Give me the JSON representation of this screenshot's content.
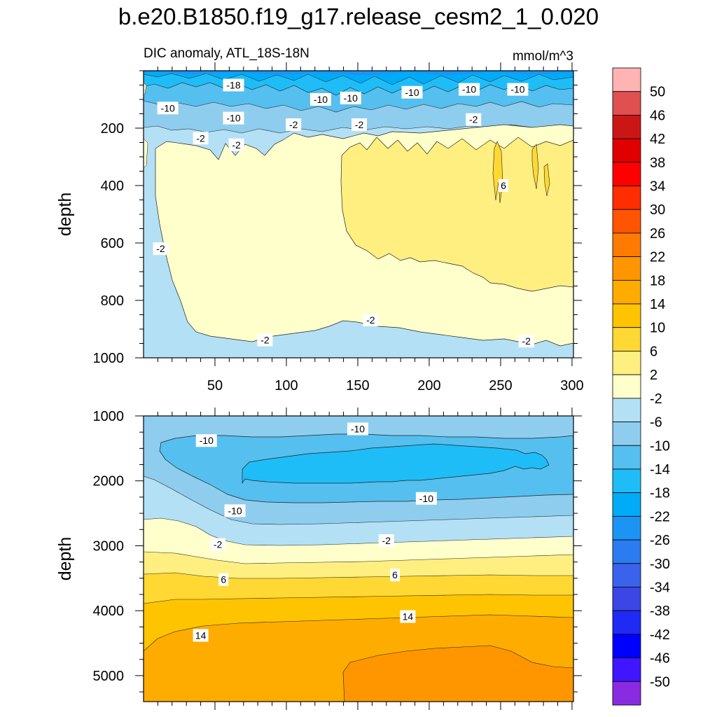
{
  "chart_data": {
    "type": "contour",
    "title": "b.e20.B1850.f19_g17.release_cesm2_1_0.020",
    "subtitle": "DIC anomaly, ATL_18S-18N",
    "units": "mmol/m^3",
    "x_ticks": [
      50,
      100,
      150,
      200,
      250,
      300
    ],
    "xlim": [
      0,
      301
    ],
    "panels": [
      {
        "name": "upper",
        "ylabel": "depth",
        "ylim": [
          0,
          1000
        ],
        "y_ticks": [
          200,
          400,
          600,
          800,
          1000
        ],
        "contour_labels": [
          {
            "text": "-18",
            "x": 63,
            "y": 50
          },
          {
            "text": "-10",
            "x": 17,
            "y": 130
          },
          {
            "text": "-10",
            "x": 63,
            "y": 165
          },
          {
            "text": "-10",
            "x": 124,
            "y": 100
          },
          {
            "text": "-10",
            "x": 145,
            "y": 95
          },
          {
            "text": "-10",
            "x": 188,
            "y": 75
          },
          {
            "text": "-10",
            "x": 228,
            "y": 65
          },
          {
            "text": "-10",
            "x": 262,
            "y": 65
          },
          {
            "text": "-2",
            "x": 105,
            "y": 188
          },
          {
            "text": "-2",
            "x": 151,
            "y": 188
          },
          {
            "text": "-2",
            "x": 231,
            "y": 170
          },
          {
            "text": "-2",
            "x": 40,
            "y": 235
          },
          {
            "text": "-2",
            "x": 65,
            "y": 258
          },
          {
            "text": "-2",
            "x": 12,
            "y": 620
          },
          {
            "text": "-2",
            "x": 85,
            "y": 938
          },
          {
            "text": "-2",
            "x": 159,
            "y": 868
          },
          {
            "text": "-2",
            "x": 268,
            "y": 942
          },
          {
            "text": "6",
            "x": 252,
            "y": 400
          }
        ]
      },
      {
        "name": "lower",
        "ylabel": "depth",
        "ylim": [
          1000,
          5400
        ],
        "y_ticks": [
          1000,
          2000,
          3000,
          4000,
          5000
        ],
        "contour_labels": [
          {
            "text": "-10",
            "x": 44,
            "y": 1380
          },
          {
            "text": "-10",
            "x": 150,
            "y": 1200
          },
          {
            "text": "-10",
            "x": 64,
            "y": 2460
          },
          {
            "text": "-10",
            "x": 198,
            "y": 2270
          },
          {
            "text": "-2",
            "x": 52,
            "y": 2980
          },
          {
            "text": "-2",
            "x": 170,
            "y": 2920
          },
          {
            "text": "6",
            "x": 56,
            "y": 3520
          },
          {
            "text": "6",
            "x": 176,
            "y": 3450
          },
          {
            "text": "14",
            "x": 40,
            "y": 4380
          },
          {
            "text": "14",
            "x": 185,
            "y": 4090
          }
        ]
      }
    ],
    "colorbar": {
      "labels": [
        "50",
        "46",
        "42",
        "38",
        "34",
        "30",
        "26",
        "22",
        "18",
        "14",
        "10",
        "6",
        "2",
        "-2",
        "-6",
        "-10",
        "-14",
        "-18",
        "-22",
        "-26",
        "-30",
        "-34",
        "-38",
        "-42",
        "-46",
        "-50"
      ],
      "colors": [
        "#ffb3b3",
        "#e05050",
        "#cc1616",
        "#e00000",
        "#ff0000",
        "#ff2d00",
        "#ff5500",
        "#ff7a00",
        "#ff9600",
        "#ffac00",
        "#ffc400",
        "#ffd833",
        "#ffef80",
        "#ffffcc",
        "#b3e0f5",
        "#8fcdef",
        "#55bfef",
        "#1fbdf7",
        "#00abf7",
        "#1c94f4",
        "#2b7cf0",
        "#3a62ea",
        "#3b46e5",
        "#1f2af5",
        "#0000ff",
        "#4016ff",
        "#8a2be2"
      ]
    }
  }
}
